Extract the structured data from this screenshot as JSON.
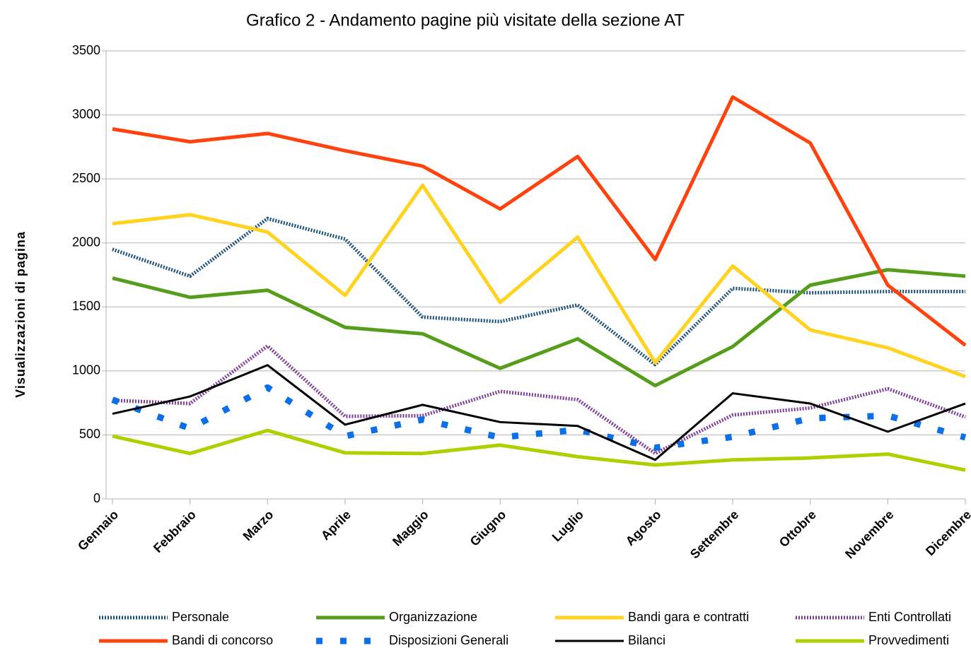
{
  "chart_data": {
    "type": "line",
    "title": "Grafico 2 - Andamento pagine più visitate della sezione AT",
    "y_label": "Visualizzazioni di pagina",
    "categories": [
      "Gennaio",
      "Febbraio",
      "Marzo",
      "Aprile",
      "Maggio",
      "Giugno",
      "Luglio",
      "Agosto",
      "Settembre",
      "Ottobre",
      "Novembre",
      "Dicembre"
    ],
    "ylim": [
      0,
      3500
    ],
    "yticks": [
      0,
      500,
      1000,
      1500,
      2000,
      2500,
      3000,
      3500
    ],
    "grid": true,
    "legend": "bottom",
    "series": [
      {
        "name": "Personale",
        "color": "#1a4f7a",
        "style": "dotted",
        "values": [
          1950,
          1740,
          2190,
          2030,
          1420,
          1385,
          1515,
          1050,
          1645,
          1610,
          1620,
          1620
        ]
      },
      {
        "name": "Organizzazione",
        "color": "#579d1c",
        "style": "solid",
        "values": [
          1725,
          1575,
          1630,
          1340,
          1290,
          1020,
          1250,
          885,
          1190,
          1670,
          1790,
          1740
        ]
      },
      {
        "name": "Bandi gara e contratti",
        "color": "#ffd320",
        "style": "solid",
        "values": [
          2150,
          2220,
          2085,
          1590,
          2450,
          1535,
          2045,
          1065,
          1820,
          1320,
          1180,
          955
        ]
      },
      {
        "name": "Enti Controllati",
        "color": "#7e3e98",
        "style": "dotted",
        "values": [
          770,
          745,
          1195,
          645,
          650,
          840,
          775,
          355,
          655,
          710,
          860,
          640
        ]
      },
      {
        "name": "Bandi di concorso",
        "color": "#ff420e",
        "style": "solid",
        "values": [
          2890,
          2790,
          2855,
          2720,
          2600,
          2265,
          2675,
          1870,
          3140,
          2780,
          1670,
          1200
        ]
      },
      {
        "name": "Disposizioni Generali",
        "color": "#0a6fe8",
        "style": "dots",
        "values": [
          775,
          550,
          870,
          490,
          620,
          480,
          540,
          400,
          485,
          630,
          650,
          480
        ]
      },
      {
        "name": "Bilanci",
        "color": "#000000",
        "style": "thin",
        "values": [
          665,
          800,
          1045,
          580,
          735,
          600,
          570,
          305,
          825,
          745,
          525,
          745
        ]
      },
      {
        "name": "Provvedimenti",
        "color": "#aecf00",
        "style": "solid",
        "values": [
          490,
          355,
          535,
          360,
          355,
          420,
          330,
          265,
          305,
          320,
          350,
          225
        ]
      }
    ]
  }
}
